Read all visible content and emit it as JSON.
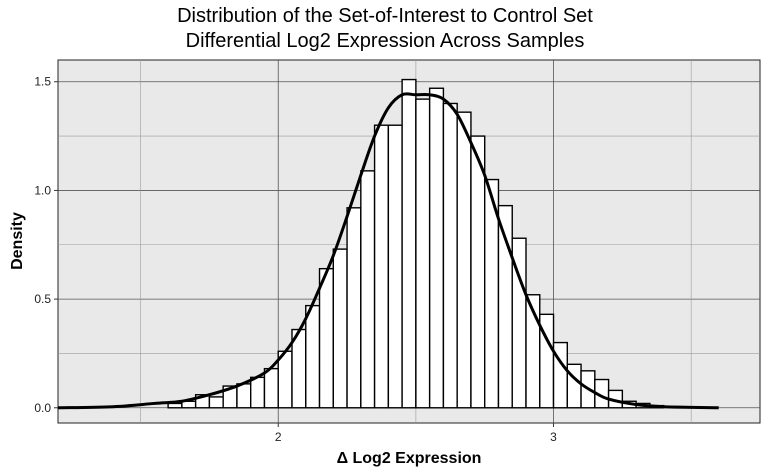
{
  "chart_data": {
    "type": "bar",
    "title_line1": "Distribution of the Set-of-Interest to Control Set",
    "title_line2": "Differential Log2 Expression Across Samples",
    "xlabel": "Δ Log2 Expression",
    "ylabel": "Density",
    "xlim": [
      1.2,
      3.75
    ],
    "ylim": [
      -0.07,
      1.6
    ],
    "x_ticks": [
      2,
      3
    ],
    "x_tick_labels": [
      "2",
      "3"
    ],
    "y_ticks": [
      0.0,
      0.5,
      1.0,
      1.5
    ],
    "y_tick_labels": [
      "0.0",
      "0.5",
      "1.0",
      "1.5"
    ],
    "grid": true,
    "bin_width": 0.05,
    "histogram": [
      {
        "x0": 1.6,
        "x1": 1.65,
        "density": 0.02
      },
      {
        "x0": 1.65,
        "x1": 1.7,
        "density": 0.03
      },
      {
        "x0": 1.7,
        "x1": 1.75,
        "density": 0.06
      },
      {
        "x0": 1.75,
        "x1": 1.8,
        "density": 0.05
      },
      {
        "x0": 1.8,
        "x1": 1.85,
        "density": 0.1
      },
      {
        "x0": 1.85,
        "x1": 1.9,
        "density": 0.11
      },
      {
        "x0": 1.9,
        "x1": 1.95,
        "density": 0.14
      },
      {
        "x0": 1.95,
        "x1": 2.0,
        "density": 0.18
      },
      {
        "x0": 2.0,
        "x1": 2.05,
        "density": 0.26
      },
      {
        "x0": 2.05,
        "x1": 2.1,
        "density": 0.36
      },
      {
        "x0": 2.1,
        "x1": 2.15,
        "density": 0.47
      },
      {
        "x0": 2.15,
        "x1": 2.2,
        "density": 0.64
      },
      {
        "x0": 2.2,
        "x1": 2.25,
        "density": 0.73
      },
      {
        "x0": 2.25,
        "x1": 2.3,
        "density": 0.92
      },
      {
        "x0": 2.3,
        "x1": 2.35,
        "density": 1.09
      },
      {
        "x0": 2.35,
        "x1": 2.4,
        "density": 1.3
      },
      {
        "x0": 2.4,
        "x1": 2.45,
        "density": 1.3
      },
      {
        "x0": 2.45,
        "x1": 2.5,
        "density": 1.51
      },
      {
        "x0": 2.5,
        "x1": 2.55,
        "density": 1.42
      },
      {
        "x0": 2.55,
        "x1": 2.6,
        "density": 1.47
      },
      {
        "x0": 2.6,
        "x1": 2.65,
        "density": 1.4
      },
      {
        "x0": 2.65,
        "x1": 2.7,
        "density": 1.36
      },
      {
        "x0": 2.7,
        "x1": 2.75,
        "density": 1.25
      },
      {
        "x0": 2.75,
        "x1": 2.8,
        "density": 1.05
      },
      {
        "x0": 2.8,
        "x1": 2.85,
        "density": 0.93
      },
      {
        "x0": 2.85,
        "x1": 2.9,
        "density": 0.78
      },
      {
        "x0": 2.9,
        "x1": 2.95,
        "density": 0.52
      },
      {
        "x0": 2.95,
        "x1": 3.0,
        "density": 0.43
      },
      {
        "x0": 3.0,
        "x1": 3.05,
        "density": 0.3
      },
      {
        "x0": 3.05,
        "x1": 3.1,
        "density": 0.2
      },
      {
        "x0": 3.1,
        "x1": 3.15,
        "density": 0.17
      },
      {
        "x0": 3.15,
        "x1": 3.2,
        "density": 0.13
      },
      {
        "x0": 3.2,
        "x1": 3.25,
        "density": 0.08
      },
      {
        "x0": 3.25,
        "x1": 3.3,
        "density": 0.03
      },
      {
        "x0": 3.3,
        "x1": 3.35,
        "density": 0.02
      },
      {
        "x0": 3.35,
        "x1": 3.4,
        "density": 0.01
      }
    ],
    "density_curve": {
      "x": [
        1.2,
        1.4,
        1.55,
        1.65,
        1.75,
        1.85,
        1.95,
        2.0,
        2.05,
        2.1,
        2.15,
        2.2,
        2.25,
        2.3,
        2.35,
        2.4,
        2.45,
        2.5,
        2.55,
        2.6,
        2.65,
        2.7,
        2.75,
        2.8,
        2.85,
        2.9,
        2.95,
        3.0,
        3.05,
        3.1,
        3.15,
        3.2,
        3.3,
        3.4,
        3.6
      ],
      "y": [
        0.0,
        0.005,
        0.02,
        0.03,
        0.06,
        0.1,
        0.16,
        0.22,
        0.3,
        0.41,
        0.55,
        0.7,
        0.88,
        1.07,
        1.25,
        1.38,
        1.44,
        1.44,
        1.44,
        1.42,
        1.35,
        1.22,
        1.07,
        0.87,
        0.69,
        0.52,
        0.38,
        0.26,
        0.17,
        0.11,
        0.07,
        0.04,
        0.015,
        0.005,
        0.0
      ]
    }
  }
}
